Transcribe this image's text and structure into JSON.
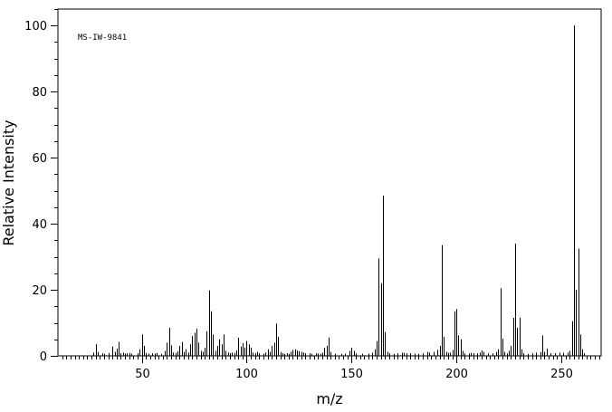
{
  "chart_data": {
    "type": "bar",
    "annotation": "MS-IW-9841",
    "xlabel": "m/z",
    "ylabel": "Relative Intensity",
    "xlim": [
      10,
      269
    ],
    "ylim": [
      0,
      105
    ],
    "x_ticks": [
      50,
      100,
      150,
      200,
      250
    ],
    "y_ticks": [
      0,
      20,
      40,
      60,
      80,
      100
    ],
    "x_minor_step": 2,
    "y_minor_step": 5,
    "grid": false,
    "legend": "none",
    "bar_color": "#000000",
    "peaks": [
      [
        27,
        1.0
      ],
      [
        28,
        3.5
      ],
      [
        29,
        1.2
      ],
      [
        31,
        0.8
      ],
      [
        32,
        0.6
      ],
      [
        34,
        0.9
      ],
      [
        36,
        2.8
      ],
      [
        37,
        1.2
      ],
      [
        38,
        2.2
      ],
      [
        39,
        4.2
      ],
      [
        40,
        0.8
      ],
      [
        41,
        1.0
      ],
      [
        42,
        0.7
      ],
      [
        43,
        0.8
      ],
      [
        44,
        0.9
      ],
      [
        45,
        0.6
      ],
      [
        48,
        0.8
      ],
      [
        49,
        2.0
      ],
      [
        50,
        6.5
      ],
      [
        51,
        3.0
      ],
      [
        52,
        0.9
      ],
      [
        53,
        0.7
      ],
      [
        55,
        0.8
      ],
      [
        56,
        0.7
      ],
      [
        57,
        0.9
      ],
      [
        59,
        0.6
      ],
      [
        61,
        1.5
      ],
      [
        62,
        4.0
      ],
      [
        63,
        8.5
      ],
      [
        64,
        3.2
      ],
      [
        65,
        1.0
      ],
      [
        66,
        0.9
      ],
      [
        67,
        1.4
      ],
      [
        68,
        3.0
      ],
      [
        69,
        4.2
      ],
      [
        70,
        1.2
      ],
      [
        71,
        2.0
      ],
      [
        72,
        1.0
      ],
      [
        73,
        3.5
      ],
      [
        74,
        6.0
      ],
      [
        75,
        7.0
      ],
      [
        76,
        8.2
      ],
      [
        77,
        4.0
      ],
      [
        78,
        1.5
      ],
      [
        79,
        1.2
      ],
      [
        80,
        2.5
      ],
      [
        81,
        7.5
      ],
      [
        82,
        19.8
      ],
      [
        83,
        13.5
      ],
      [
        84,
        6.5
      ],
      [
        85,
        1.5
      ],
      [
        86,
        3.0
      ],
      [
        87,
        5.0
      ],
      [
        88,
        3.5
      ],
      [
        89,
        6.5
      ],
      [
        90,
        1.5
      ],
      [
        91,
        1.0
      ],
      [
        92,
        0.8
      ],
      [
        93,
        1.0
      ],
      [
        94,
        0.9
      ],
      [
        95,
        1.6
      ],
      [
        96,
        5.5
      ],
      [
        97,
        2.8
      ],
      [
        98,
        3.8
      ],
      [
        99,
        2.5
      ],
      [
        100,
        4.5
      ],
      [
        101,
        3.5
      ],
      [
        102,
        2.5
      ],
      [
        103,
        1.0
      ],
      [
        104,
        0.8
      ],
      [
        105,
        1.2
      ],
      [
        106,
        0.8
      ],
      [
        108,
        0.6
      ],
      [
        109,
        1.0
      ],
      [
        110,
        2.0
      ],
      [
        111,
        1.2
      ],
      [
        112,
        3.0
      ],
      [
        113,
        4.0
      ],
      [
        114,
        9.8
      ],
      [
        115,
        5.8
      ],
      [
        116,
        1.2
      ],
      [
        117,
        0.8
      ],
      [
        118,
        0.6
      ],
      [
        119,
        0.8
      ],
      [
        120,
        0.6
      ],
      [
        121,
        1.2
      ],
      [
        122,
        1.8
      ],
      [
        123,
        2.0
      ],
      [
        124,
        1.6
      ],
      [
        125,
        1.4
      ],
      [
        126,
        1.2
      ],
      [
        127,
        1.0
      ],
      [
        128,
        0.8
      ],
      [
        130,
        0.8
      ],
      [
        131,
        0.6
      ],
      [
        133,
        0.8
      ],
      [
        134,
        0.7
      ],
      [
        135,
        0.6
      ],
      [
        136,
        1.0
      ],
      [
        137,
        2.5
      ],
      [
        138,
        3.0
      ],
      [
        139,
        5.6
      ],
      [
        140,
        1.2
      ],
      [
        142,
        0.6
      ],
      [
        145,
        0.6
      ],
      [
        147,
        0.7
      ],
      [
        149,
        1.5
      ],
      [
        150,
        2.5
      ],
      [
        151,
        1.5
      ],
      [
        152,
        0.8
      ],
      [
        155,
        0.6
      ],
      [
        158,
        0.7
      ],
      [
        160,
        1.0
      ],
      [
        161,
        2.0
      ],
      [
        162,
        4.5
      ],
      [
        163,
        29.5
      ],
      [
        164,
        22.0
      ],
      [
        165,
        48.5
      ],
      [
        166,
        7.2
      ],
      [
        167,
        1.2
      ],
      [
        168,
        0.8
      ],
      [
        170,
        0.6
      ],
      [
        172,
        0.8
      ],
      [
        174,
        1.0
      ],
      [
        175,
        0.9
      ],
      [
        176,
        0.8
      ],
      [
        178,
        0.8
      ],
      [
        180,
        0.7
      ],
      [
        182,
        0.6
      ],
      [
        184,
        0.8
      ],
      [
        186,
        1.2
      ],
      [
        187,
        1.0
      ],
      [
        189,
        1.2
      ],
      [
        191,
        1.8
      ],
      [
        192,
        3.0
      ],
      [
        193,
        33.5
      ],
      [
        194,
        5.8
      ],
      [
        195,
        1.2
      ],
      [
        196,
        0.9
      ],
      [
        197,
        1.0
      ],
      [
        198,
        1.8
      ],
      [
        199,
        13.5
      ],
      [
        200,
        14.2
      ],
      [
        201,
        6.2
      ],
      [
        202,
        5.0
      ],
      [
        203,
        1.5
      ],
      [
        204,
        0.8
      ],
      [
        206,
        0.7
      ],
      [
        207,
        0.9
      ],
      [
        208,
        0.8
      ],
      [
        210,
        0.8
      ],
      [
        211,
        1.0
      ],
      [
        212,
        1.6
      ],
      [
        213,
        1.2
      ],
      [
        215,
        0.8
      ],
      [
        217,
        0.8
      ],
      [
        219,
        1.2
      ],
      [
        220,
        2.0
      ],
      [
        221,
        20.5
      ],
      [
        222,
        5.2
      ],
      [
        223,
        1.2
      ],
      [
        224,
        0.8
      ],
      [
        225,
        1.5
      ],
      [
        226,
        3.0
      ],
      [
        227,
        11.5
      ],
      [
        228,
        34.0
      ],
      [
        229,
        8.5
      ],
      [
        230,
        11.5
      ],
      [
        231,
        2.0
      ],
      [
        232,
        0.8
      ],
      [
        234,
        0.6
      ],
      [
        236,
        0.8
      ],
      [
        238,
        1.0
      ],
      [
        240,
        1.2
      ],
      [
        241,
        6.2
      ],
      [
        242,
        1.2
      ],
      [
        243,
        2.2
      ],
      [
        245,
        0.8
      ],
      [
        247,
        0.8
      ],
      [
        249,
        1.0
      ],
      [
        251,
        0.9
      ],
      [
        253,
        1.0
      ],
      [
        254,
        1.5
      ],
      [
        255,
        10.5
      ],
      [
        256,
        100.0
      ],
      [
        257,
        20.0
      ],
      [
        258,
        32.5
      ],
      [
        259,
        6.5
      ],
      [
        260,
        2.0
      ],
      [
        261,
        0.8
      ]
    ]
  }
}
